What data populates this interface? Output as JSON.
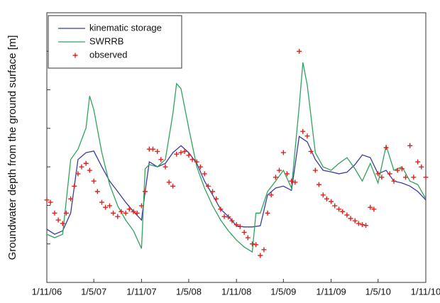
{
  "chart_data": {
    "type": "line",
    "y_label": "Groundwater depth from the ground surface [m]",
    "xlim": [
      "2006-11-01",
      "2010-11-01"
    ],
    "xticks": [
      {
        "value": "2006-11-01",
        "label": "1/11/06"
      },
      {
        "value": "2007-05-01",
        "label": "1/5/07"
      },
      {
        "value": "2007-11-01",
        "label": "1/11/07"
      },
      {
        "value": "2008-05-01",
        "label": "1/5/08"
      },
      {
        "value": "2008-11-01",
        "label": "1/11/08"
      },
      {
        "value": "2009-05-01",
        "label": "1/5/09"
      },
      {
        "value": "2009-11-01",
        "label": "1/11/09"
      },
      {
        "value": "2010-05-01",
        "label": "1/5/10"
      },
      {
        "value": "2010-11-01",
        "label": "1/11/10"
      }
    ],
    "ylim": [
      0,
      7
    ],
    "yticks": [
      1,
      2,
      3,
      4,
      5,
      6
    ],
    "legend": "top-left",
    "series": [
      {
        "name": "kinematic storage",
        "color": "#3b3b9e",
        "marker": "line",
        "x": [
          "2006-11-01",
          "2006-12-01",
          "2007-01-01",
          "2007-02-01",
          "2007-03-01",
          "2007-04-01",
          "2007-05-01",
          "2007-06-01",
          "2007-07-01",
          "2007-08-01",
          "2007-09-01",
          "2007-10-01",
          "2007-11-01",
          "2007-11-15",
          "2007-12-01",
          "2008-01-01",
          "2008-02-01",
          "2008-03-01",
          "2008-04-01",
          "2008-05-01",
          "2008-06-01",
          "2008-07-01",
          "2008-08-01",
          "2008-09-01",
          "2008-10-01",
          "2008-11-01",
          "2008-12-01",
          "2009-01-01",
          "2009-02-01",
          "2009-03-01",
          "2009-04-01",
          "2009-05-01",
          "2009-06-01",
          "2009-07-01",
          "2009-08-01",
          "2009-09-01",
          "2009-10-01",
          "2009-11-01",
          "2009-12-01",
          "2010-01-01",
          "2010-02-01",
          "2010-03-01",
          "2010-04-01",
          "2010-05-01",
          "2010-06-01",
          "2010-07-01",
          "2010-08-01",
          "2010-09-01",
          "2010-10-01",
          "2010-11-01"
        ],
        "values": [
          1.38,
          1.25,
          1.34,
          1.8,
          3.19,
          3.37,
          3.41,
          3.0,
          2.63,
          2.36,
          2.08,
          1.84,
          1.62,
          2.36,
          3.13,
          3.0,
          3.09,
          3.37,
          3.55,
          3.37,
          3.09,
          2.63,
          2.27,
          1.9,
          1.71,
          1.47,
          1.44,
          1.44,
          1.47,
          2.27,
          2.45,
          2.5,
          2.39,
          3.79,
          3.65,
          3.19,
          2.91,
          2.87,
          2.82,
          2.86,
          3.06,
          3.31,
          3.24,
          2.82,
          2.91,
          2.63,
          2.58,
          2.5,
          2.36,
          2.14
        ]
      },
      {
        "name": "SWRRB",
        "color": "#2ea35c",
        "marker": "line",
        "x": [
          "2006-11-01",
          "2006-12-01",
          "2007-01-01",
          "2007-02-01",
          "2007-03-01",
          "2007-04-01",
          "2007-04-15",
          "2007-05-01",
          "2007-06-01",
          "2007-07-01",
          "2007-08-01",
          "2007-09-01",
          "2007-10-01",
          "2007-11-01",
          "2007-11-15",
          "2007-12-01",
          "2008-01-01",
          "2008-02-01",
          "2008-03-01",
          "2008-03-15",
          "2008-04-01",
          "2008-05-01",
          "2008-06-01",
          "2008-07-01",
          "2008-08-01",
          "2008-09-01",
          "2008-10-01",
          "2008-11-01",
          "2008-12-01",
          "2009-01-01",
          "2009-01-15",
          "2009-02-01",
          "2009-03-01",
          "2009-04-01",
          "2009-05-01",
          "2009-06-01",
          "2009-07-01",
          "2009-07-15",
          "2009-08-01",
          "2009-09-01",
          "2009-10-01",
          "2009-11-01",
          "2009-12-01",
          "2010-01-01",
          "2010-02-01",
          "2010-03-01",
          "2010-04-01",
          "2010-05-01",
          "2010-06-01",
          "2010-07-01",
          "2010-08-01",
          "2010-09-01",
          "2010-10-01",
          "2010-11-01"
        ],
        "values": [
          1.25,
          1.16,
          1.25,
          3.19,
          3.46,
          4.01,
          4.84,
          4.48,
          3.37,
          2.54,
          1.99,
          1.62,
          1.34,
          0.88,
          2.95,
          3.06,
          3.0,
          3.19,
          4.38,
          5.16,
          5.03,
          4.01,
          3.0,
          2.45,
          1.99,
          1.62,
          1.34,
          1.1,
          0.92,
          0.79,
          1.8,
          1.8,
          2.36,
          2.63,
          2.91,
          2.45,
          4.57,
          5.71,
          5.12,
          3.37,
          3.0,
          2.91,
          3.09,
          3.24,
          2.95,
          2.63,
          3.09,
          2.58,
          3.55,
          2.91,
          3.0,
          2.63,
          2.54,
          2.17
        ]
      },
      {
        "name": "observed",
        "color": "#e0201c",
        "marker": "plus",
        "x": [
          "2006-11-01",
          "2006-11-15",
          "2006-12-01",
          "2006-12-15",
          "2007-01-01",
          "2007-01-15",
          "2007-02-01",
          "2007-02-15",
          "2007-03-01",
          "2007-03-15",
          "2007-04-01",
          "2007-04-15",
          "2007-05-01",
          "2007-05-15",
          "2007-06-01",
          "2007-06-15",
          "2007-07-01",
          "2007-07-15",
          "2007-08-01",
          "2007-08-15",
          "2007-09-01",
          "2007-09-15",
          "2007-10-01",
          "2007-10-15",
          "2007-11-01",
          "2007-11-15",
          "2007-12-01",
          "2007-12-15",
          "2008-01-01",
          "2008-01-15",
          "2008-02-01",
          "2008-02-15",
          "2008-03-01",
          "2008-03-15",
          "2008-04-01",
          "2008-04-15",
          "2008-05-01",
          "2008-05-15",
          "2008-06-01",
          "2008-06-15",
          "2008-07-01",
          "2008-07-15",
          "2008-08-01",
          "2008-08-15",
          "2008-09-01",
          "2008-09-15",
          "2008-10-01",
          "2008-10-15",
          "2008-11-01",
          "2008-11-15",
          "2008-12-01",
          "2008-12-15",
          "2009-01-01",
          "2009-01-15",
          "2009-02-01",
          "2009-02-15",
          "2009-03-01",
          "2009-03-15",
          "2009-04-01",
          "2009-04-15",
          "2009-05-01",
          "2009-05-15",
          "2009-06-01",
          "2009-06-15",
          "2009-07-01",
          "2009-07-15",
          "2009-08-01",
          "2009-08-15",
          "2009-09-01",
          "2009-09-15",
          "2009-10-01",
          "2009-10-15",
          "2009-11-01",
          "2009-11-15",
          "2009-12-01",
          "2009-12-15",
          "2010-01-01",
          "2010-01-15",
          "2010-02-01",
          "2010-02-15",
          "2010-03-01",
          "2010-03-15",
          "2010-04-01",
          "2010-04-15",
          "2010-05-01",
          "2010-05-15",
          "2010-06-01",
          "2010-06-15",
          "2010-07-01",
          "2010-07-15",
          "2010-08-01",
          "2010-08-15",
          "2010-09-01",
          "2010-09-15",
          "2010-10-01",
          "2010-10-15",
          "2010-11-01"
        ],
        "values": [
          2.14,
          2.08,
          1.8,
          1.62,
          1.53,
          1.8,
          2.17,
          2.5,
          2.82,
          3.0,
          3.09,
          2.91,
          2.63,
          2.36,
          2.08,
          1.95,
          1.99,
          1.8,
          1.71,
          1.84,
          1.8,
          1.9,
          1.84,
          1.8,
          1.99,
          2.36,
          3.46,
          3.46,
          3.4,
          3.19,
          3.0,
          2.6,
          2.5,
          3.33,
          3.37,
          3.4,
          3.3,
          3.19,
          3.13,
          3.0,
          2.82,
          2.5,
          2.36,
          2.17,
          1.9,
          1.71,
          1.7,
          1.6,
          1.5,
          1.45,
          1.3,
          1.16,
          1.0,
          0.98,
          0.7,
          0.85,
          1.8,
          2.27,
          2.73,
          2.91,
          3.37,
          2.82,
          2.63,
          2.6,
          6.0,
          3.92,
          3.8,
          3.4,
          2.91,
          2.54,
          2.27,
          2.17,
          2.1,
          1.99,
          1.9,
          1.84,
          1.75,
          1.66,
          1.6,
          1.53,
          1.5,
          1.48,
          1.95,
          1.9,
          2.82,
          2.73,
          3.5,
          2.82,
          2.63,
          2.91,
          2.95,
          2.73,
          3.55,
          2.73,
          3.13,
          3.0,
          2.73
        ]
      }
    ]
  }
}
